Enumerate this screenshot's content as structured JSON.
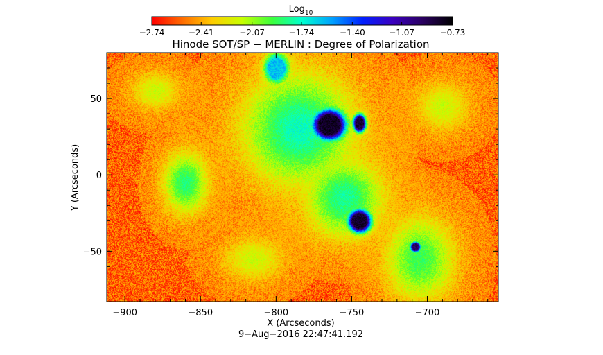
{
  "chart_data": {
    "type": "heatmap",
    "title": "Hinode SOT/SP − MERLIN : Degree of Polarization",
    "xlabel": "X (Arcseconds)",
    "ylabel": "Y (Arcseconds)",
    "timestamp": "9−Aug−2016 22:47:41.192",
    "xlim": [
      -912,
      -653
    ],
    "ylim": [
      -83,
      80
    ],
    "xticks": [
      -900,
      -850,
      -800,
      -750,
      -700
    ],
    "xtick_labels": [
      "−900",
      "−850",
      "−800",
      "−750",
      "−700"
    ],
    "yticks": [
      50,
      0,
      -50
    ],
    "ytick_labels": [
      "50",
      "0",
      "−50"
    ],
    "colorbar": {
      "label_base": "Log",
      "label_sub": "10",
      "range": [
        -2.74,
        -0.73
      ],
      "ticks": [
        -2.74,
        -2.41,
        -2.07,
        -1.74,
        -1.4,
        -1.07,
        -0.73
      ],
      "tick_labels": [
        "−2.74",
        "−2.41",
        "−2.07",
        "−1.74",
        "−1.40",
        "−1.07",
        "−0.73"
      ],
      "colormap": [
        "#ff0000",
        "#ff6a00",
        "#ffcc00",
        "#c8ff00",
        "#3cff3c",
        "#00ffd0",
        "#00a0ff",
        "#0020ff",
        "#3a00c0",
        "#2a0060",
        "#000000"
      ]
    },
    "background_level": -2.55,
    "features": [
      {
        "name": "large spot",
        "x": -765,
        "y": 33,
        "rx": 13,
        "ry": 12,
        "value": -0.8
      },
      {
        "name": "spot companion",
        "x": -745,
        "y": 34,
        "rx": 5,
        "ry": 7,
        "value": -0.85
      },
      {
        "name": "medium spot",
        "x": -745,
        "y": -30,
        "rx": 9,
        "ry": 9,
        "value": -0.82
      },
      {
        "name": "small spot",
        "x": -708,
        "y": -47,
        "rx": 4,
        "ry": 4,
        "value": -0.95
      },
      {
        "name": "plage",
        "x": -785,
        "y": 30,
        "rx": 40,
        "ry": 40,
        "value": -1.75
      },
      {
        "name": "plage",
        "x": -755,
        "y": -15,
        "rx": 28,
        "ry": 28,
        "value": -1.8
      },
      {
        "name": "plage",
        "x": -860,
        "y": -5,
        "rx": 16,
        "ry": 22,
        "value": -1.85
      },
      {
        "name": "plage",
        "x": -705,
        "y": -55,
        "rx": 25,
        "ry": 30,
        "value": -1.9
      },
      {
        "name": "network",
        "x": -800,
        "y": 70,
        "rx": 10,
        "ry": 12,
        "value": -1.6
      },
      {
        "name": "network",
        "x": -880,
        "y": 55,
        "rx": 18,
        "ry": 14,
        "value": -2.15
      },
      {
        "name": "network",
        "x": -690,
        "y": 45,
        "rx": 20,
        "ry": 18,
        "value": -2.15
      },
      {
        "name": "network",
        "x": -815,
        "y": -55,
        "rx": 22,
        "ry": 16,
        "value": -2.15
      }
    ]
  }
}
